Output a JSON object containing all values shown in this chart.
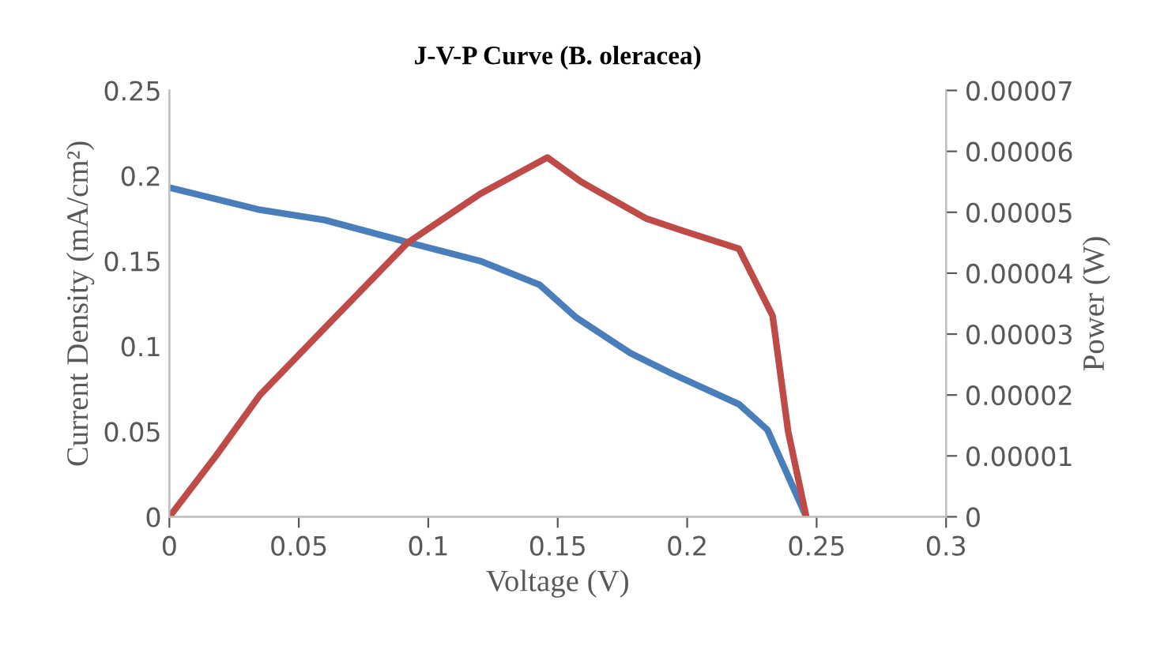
{
  "chart_data": {
    "type": "line",
    "title": "J-V-P Curve (B. oleracea)",
    "xlabel": "Voltage (V)",
    "ylabel": "Current Density (mA/cm²)",
    "y2label": "Power (W)",
    "xlim": [
      0,
      0.3
    ],
    "xticks": [
      0,
      0.05,
      0.1,
      0.15,
      0.2,
      0.25,
      0.3
    ],
    "ylim": [
      0,
      0.25
    ],
    "yticks": [
      0,
      0.05,
      0.1,
      0.15,
      0.2,
      0.25
    ],
    "y2lim": [
      0,
      7e-05
    ],
    "y2ticks": [
      0,
      {
        "value": 1e-05,
        "label": "0.00001"
      },
      {
        "value": 2e-05,
        "label": "0.00002"
      },
      {
        "value": 3e-05,
        "label": "0.00003"
      },
      {
        "value": 4e-05,
        "label": "0.00004"
      },
      {
        "value": 5e-05,
        "label": "0.00005"
      },
      {
        "value": 6e-05,
        "label": "0.00006"
      },
      {
        "value": 7e-05,
        "label": "0.00007"
      }
    ],
    "grid": false,
    "marker": "none",
    "line_style": "solid",
    "series": [
      {
        "color": "#4a7ebb",
        "x": [
          0,
          0.035,
          0.06,
          0.092,
          0.12,
          0.143,
          0.157,
          0.178,
          0.194,
          0.22,
          0.231,
          0.246
        ],
        "values": [
          0.193,
          0.18,
          0.174,
          0.161,
          0.15,
          0.136,
          0.117,
          0.096,
          0.084,
          0.066,
          0.051,
          0
        ]
      },
      {
        "color": "#be4b48",
        "axis": "y2",
        "x": [
          0,
          0.018,
          0.035,
          0.06,
          0.092,
          0.12,
          0.146,
          0.159,
          0.184,
          0.198,
          0.22,
          0.233,
          0.239,
          0.246
        ],
        "values": [
          0,
          1e-05,
          2e-05,
          3.1e-05,
          4.5e-05,
          5.3e-05,
          5.9e-05,
          5.5e-05,
          4.9e-05,
          4.7e-05,
          4.4e-05,
          3.3e-05,
          1.4e-05,
          0
        ]
      }
    ]
  }
}
